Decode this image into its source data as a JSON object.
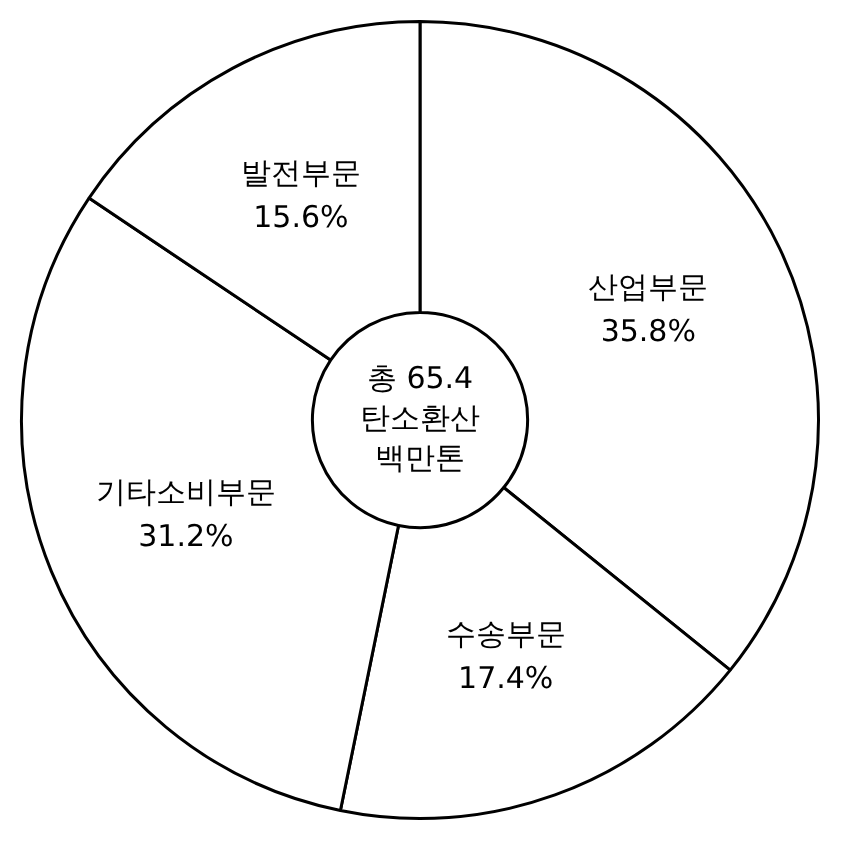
{
  "chart_data": {
    "type": "donut",
    "categories": [
      "산업부문",
      "수송부문",
      "기타소비부문",
      "발전부문"
    ],
    "values": [
      35.8,
      17.4,
      31.2,
      15.6
    ],
    "value_labels": [
      "35.8%",
      "17.4%",
      "31.2%",
      "15.6%"
    ],
    "colors": [
      "#ffffff",
      "#ffffff",
      "#ffffff",
      "#ffffff"
    ],
    "annotations": [
      "총 65.4",
      "탄소환산",
      "백만톤"
    ],
    "legend": false
  }
}
